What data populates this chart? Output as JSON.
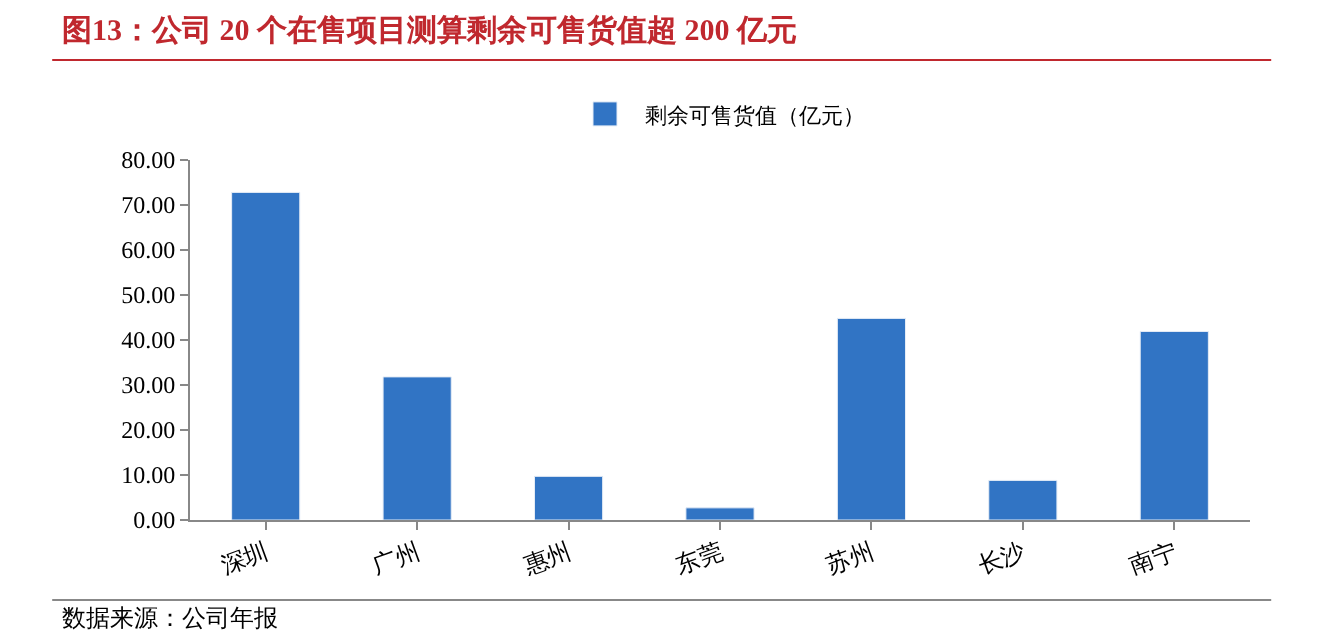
{
  "chart_data": {
    "type": "bar",
    "title": "图13：公司 20 个在售项目测算剩余可售货值超 200 亿元",
    "categories": [
      "深圳",
      "广州",
      "惠州",
      "东莞",
      "苏州",
      "长沙",
      "南宁"
    ],
    "series": [
      {
        "name": "剩余可售货值（亿元）",
        "color": "#3174c4",
        "values": [
          72.8,
          31.8,
          9.7,
          2.7,
          44.8,
          8.8,
          41.9
        ]
      }
    ],
    "ylim": [
      0,
      80
    ],
    "yticks": [
      {
        "value": 0,
        "label": "0.00"
      },
      {
        "value": 10,
        "label": "10.00"
      },
      {
        "value": 20,
        "label": "20.00"
      },
      {
        "value": 30,
        "label": "30.00"
      },
      {
        "value": 40,
        "label": "40.00"
      },
      {
        "value": 50,
        "label": "50.00"
      },
      {
        "value": 60,
        "label": "60.00"
      },
      {
        "value": 70,
        "label": "70.00"
      },
      {
        "value": 80,
        "label": "80.00"
      }
    ],
    "grid": false,
    "legend": "top",
    "annotations": [
      "数据来源：公司年报"
    ]
  }
}
